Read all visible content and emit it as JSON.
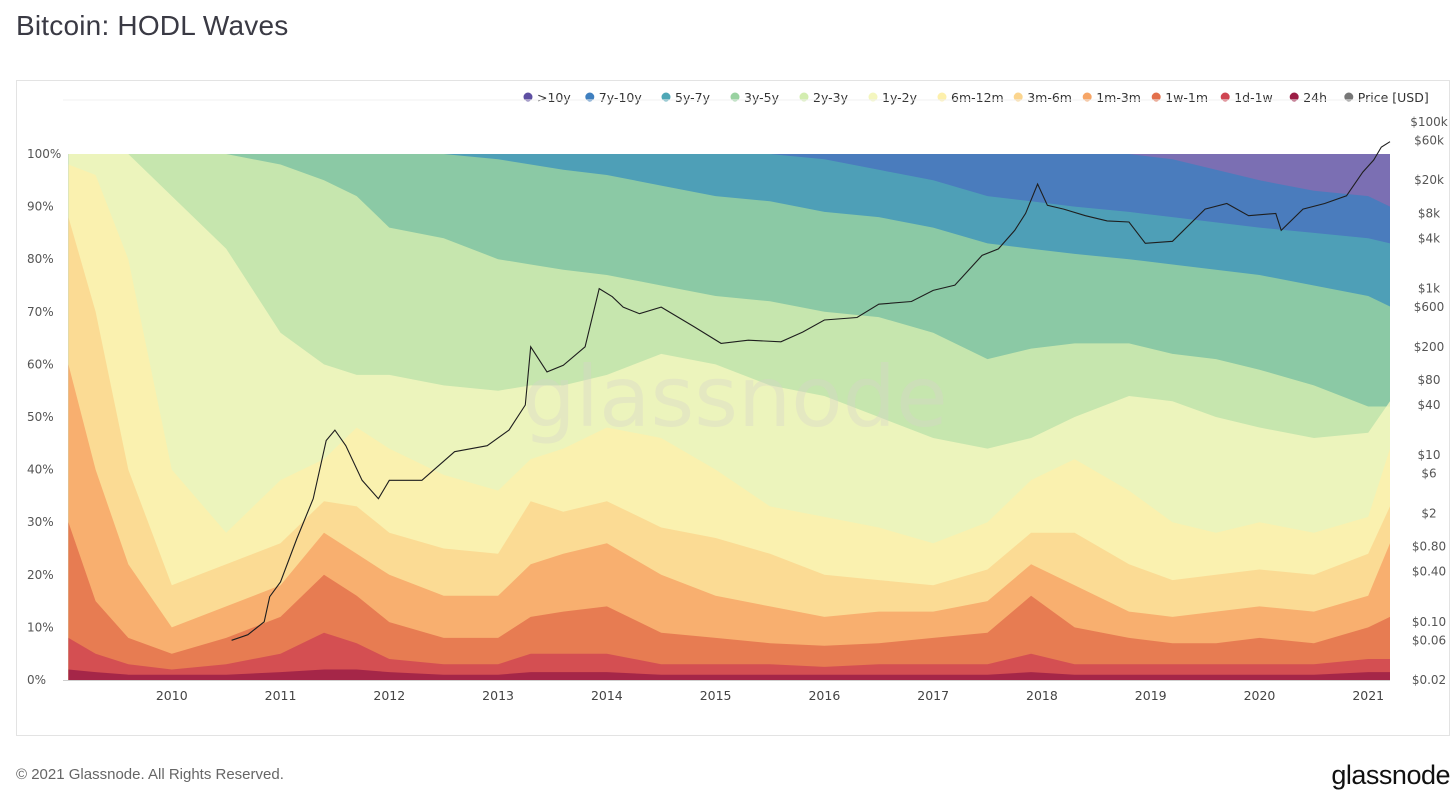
{
  "page": {
    "title": "Bitcoin: HODL Waves",
    "copyright": "© 2021 Glassnode. All Rights Reserved.",
    "brand": "glassnode",
    "watermark": "glassnode"
  },
  "chart_data": {
    "type": "area",
    "stacked": true,
    "title": "Bitcoin: HODL Waves",
    "x_range": [
      2009.0,
      2021.2
    ],
    "x_ticks": [
      "2010",
      "2011",
      "2012",
      "2013",
      "2014",
      "2015",
      "2016",
      "2017",
      "2018",
      "2019",
      "2020",
      "2021"
    ],
    "y_left": {
      "range": [
        0,
        100
      ],
      "ticks": [
        "0%",
        "10%",
        "20%",
        "30%",
        "40%",
        "50%",
        "60%",
        "70%",
        "80%",
        "90%",
        "100%"
      ]
    },
    "y_right": {
      "scale": "log",
      "range": [
        0.02,
        100000
      ],
      "ticks": [
        {
          "label": "$100k",
          "value": 100000
        },
        {
          "label": "$60k",
          "value": 60000
        },
        {
          "label": "$20k",
          "value": 20000
        },
        {
          "label": "$8k",
          "value": 8000
        },
        {
          "label": "$4k",
          "value": 4000
        },
        {
          "label": "$1k",
          "value": 1000
        },
        {
          "label": "$600",
          "value": 600
        },
        {
          "label": "$200",
          "value": 200
        },
        {
          "label": "$80",
          "value": 80
        },
        {
          "label": "$40",
          "value": 40
        },
        {
          "label": "$10",
          "value": 10
        },
        {
          "label": "$6",
          "value": 6
        },
        {
          "label": "$2",
          "value": 2
        },
        {
          "label": "$0.80",
          "value": 0.8
        },
        {
          "label": "$0.40",
          "value": 0.4
        },
        {
          "label": "$0.10",
          "value": 0.1
        },
        {
          "label": "$0.06",
          "value": 0.06
        },
        {
          "label": "$0.02",
          "value": 0.02
        }
      ]
    },
    "legend": [
      {
        "name": ">10y",
        "color": "#5e4fa2"
      },
      {
        "name": "7y-10y",
        "color": "#3f7fbf"
      },
      {
        "name": "5y-7y",
        "color": "#4fa7b6"
      },
      {
        "name": "3y-5y",
        "color": "#99d2a1"
      },
      {
        "name": "2y-3y",
        "color": "#d3edb0"
      },
      {
        "name": "1y-2y",
        "color": "#f4f6bf"
      },
      {
        "name": "6m-12m",
        "color": "#fdf0ac"
      },
      {
        "name": "3m-6m",
        "color": "#fbd58e"
      },
      {
        "name": "1m-3m",
        "color": "#f6a566"
      },
      {
        "name": "1w-1m",
        "color": "#e3704c"
      },
      {
        "name": "1d-1w",
        "color": "#cf4552"
      },
      {
        "name": "24h",
        "color": "#9b1d45"
      },
      {
        "name": "Price [USD]",
        "color": "#777777"
      }
    ],
    "series_order_bottom_to_top": [
      "24h",
      "1d-1w",
      "1w-1m",
      "1m-3m",
      "3m-6m",
      "6m-12m",
      "1y-2y",
      "2y-3y",
      "3y-5y",
      "5y-7y",
      "7y-10y",
      ">10y"
    ],
    "cumulative_boundaries_pct": {
      "x": [
        2009.05,
        2009.3,
        2009.6,
        2010.0,
        2010.5,
        2011.0,
        2011.4,
        2011.7,
        2012.0,
        2012.5,
        2013.0,
        2013.3,
        2013.6,
        2014.0,
        2014.5,
        2015.0,
        2015.5,
        2016.0,
        2016.5,
        2017.0,
        2017.5,
        2017.9,
        2018.3,
        2018.8,
        2019.2,
        2019.6,
        2020.0,
        2020.5,
        2021.0,
        2021.2
      ],
      "24h": [
        2,
        1.5,
        1,
        1,
        1,
        1.5,
        2,
        2,
        1.5,
        1,
        1,
        1.5,
        1.5,
        1.5,
        1,
        1,
        1,
        1,
        1,
        1,
        1,
        1.5,
        1,
        1,
        1,
        1,
        1,
        1,
        1.5,
        1.5
      ],
      "1d-1w": [
        8,
        5,
        3,
        2,
        3,
        5,
        9,
        7,
        4,
        3,
        3,
        5,
        5,
        5,
        3,
        3,
        3,
        2.5,
        3,
        3,
        3,
        5,
        3,
        3,
        3,
        3,
        3,
        3,
        4,
        4
      ],
      "1w-1m": [
        30,
        15,
        8,
        5,
        8,
        12,
        20,
        16,
        11,
        8,
        8,
        12,
        13,
        14,
        9,
        8,
        7,
        6.5,
        7,
        8,
        9,
        16,
        10,
        8,
        7,
        7,
        8,
        7,
        10,
        12
      ],
      "1m-3m": [
        60,
        40,
        22,
        10,
        14,
        18,
        28,
        24,
        20,
        16,
        16,
        22,
        24,
        26,
        20,
        16,
        14,
        12,
        13,
        13,
        15,
        22,
        18,
        13,
        12,
        13,
        14,
        13,
        16,
        26
      ],
      "3m-6m": [
        88,
        70,
        40,
        18,
        22,
        26,
        34,
        33,
        28,
        25,
        24,
        34,
        32,
        34,
        29,
        27,
        24,
        20,
        19,
        18,
        21,
        28,
        28,
        22,
        19,
        20,
        21,
        20,
        24,
        33
      ],
      "6m-12m": [
        98,
        96,
        80,
        40,
        28,
        38,
        42,
        48,
        44,
        39,
        36,
        42,
        44,
        48,
        46,
        40,
        33,
        31,
        29,
        26,
        30,
        38,
        42,
        36,
        30,
        28,
        30,
        28,
        31,
        44
      ],
      "1y-2y": [
        100,
        100,
        100,
        92,
        82,
        66,
        60,
        58,
        58,
        56,
        55,
        56,
        56,
        58,
        62,
        60,
        56,
        54,
        50,
        46,
        44,
        46,
        50,
        54,
        53,
        50,
        48,
        46,
        47,
        53
      ],
      "2y-3y": [
        100,
        100,
        100,
        100,
        100,
        98,
        95,
        92,
        86,
        84,
        80,
        79,
        78,
        77,
        75,
        73,
        72,
        70,
        69,
        66,
        61,
        63,
        64,
        64,
        62,
        61,
        59,
        56,
        52,
        52
      ],
      "3y-5y": [
        100,
        100,
        100,
        100,
        100,
        100,
        100,
        100,
        100,
        100,
        99,
        98,
        97,
        96,
        94,
        92,
        91,
        89,
        88,
        86,
        83,
        82,
        81,
        80,
        79,
        78,
        77,
        75,
        73,
        71
      ],
      "5y-7y": [
        100,
        100,
        100,
        100,
        100,
        100,
        100,
        100,
        100,
        100,
        100,
        100,
        100,
        100,
        100,
        100,
        100,
        99,
        97,
        95,
        92,
        91,
        90,
        89,
        88,
        87,
        86,
        85,
        84,
        83
      ],
      "7y-10y": [
        100,
        100,
        100,
        100,
        100,
        100,
        100,
        100,
        100,
        100,
        100,
        100,
        100,
        100,
        100,
        100,
        100,
        100,
        100,
        100,
        100,
        100,
        100,
        100,
        99,
        97,
        95,
        93,
        92,
        90
      ],
      ">10y": [
        100,
        100,
        100,
        100,
        100,
        100,
        100,
        100,
        100,
        100,
        100,
        100,
        100,
        100,
        100,
        100,
        100,
        100,
        100,
        100,
        100,
        100,
        100,
        100,
        100,
        100,
        100,
        100,
        100,
        100
      ]
    },
    "price_usd": {
      "x": [
        2010.55,
        2010.7,
        2010.85,
        2010.9,
        2011.0,
        2011.15,
        2011.3,
        2011.42,
        2011.5,
        2011.6,
        2011.75,
        2011.9,
        2012.0,
        2012.3,
        2012.6,
        2012.9,
        2013.1,
        2013.25,
        2013.3,
        2013.45,
        2013.6,
        2013.8,
        2013.93,
        2014.05,
        2014.15,
        2014.3,
        2014.5,
        2014.8,
        2015.05,
        2015.3,
        2015.6,
        2015.8,
        2016.0,
        2016.3,
        2016.5,
        2016.8,
        2017.0,
        2017.2,
        2017.45,
        2017.6,
        2017.75,
        2017.85,
        2017.96,
        2018.05,
        2018.2,
        2018.4,
        2018.6,
        2018.8,
        2018.95,
        2019.2,
        2019.5,
        2019.7,
        2019.9,
        2020.15,
        2020.2,
        2020.4,
        2020.6,
        2020.8,
        2020.95,
        2021.05,
        2021.12,
        2021.2
      ],
      "values": [
        0.06,
        0.07,
        0.1,
        0.2,
        0.3,
        1,
        3,
        15,
        20,
        13,
        5,
        3,
        5,
        5,
        11,
        13,
        20,
        40,
        200,
        100,
        120,
        200,
        1000,
        800,
        600,
        500,
        600,
        350,
        220,
        240,
        230,
        300,
        420,
        450,
        650,
        700,
        950,
        1100,
        2500,
        3000,
        5000,
        8000,
        18000,
        10000,
        9000,
        7500,
        6500,
        6300,
        3500,
        3700,
        9000,
        10500,
        7500,
        8000,
        5000,
        9000,
        10500,
        13000,
        25000,
        35000,
        50000,
        58000
      ]
    }
  }
}
